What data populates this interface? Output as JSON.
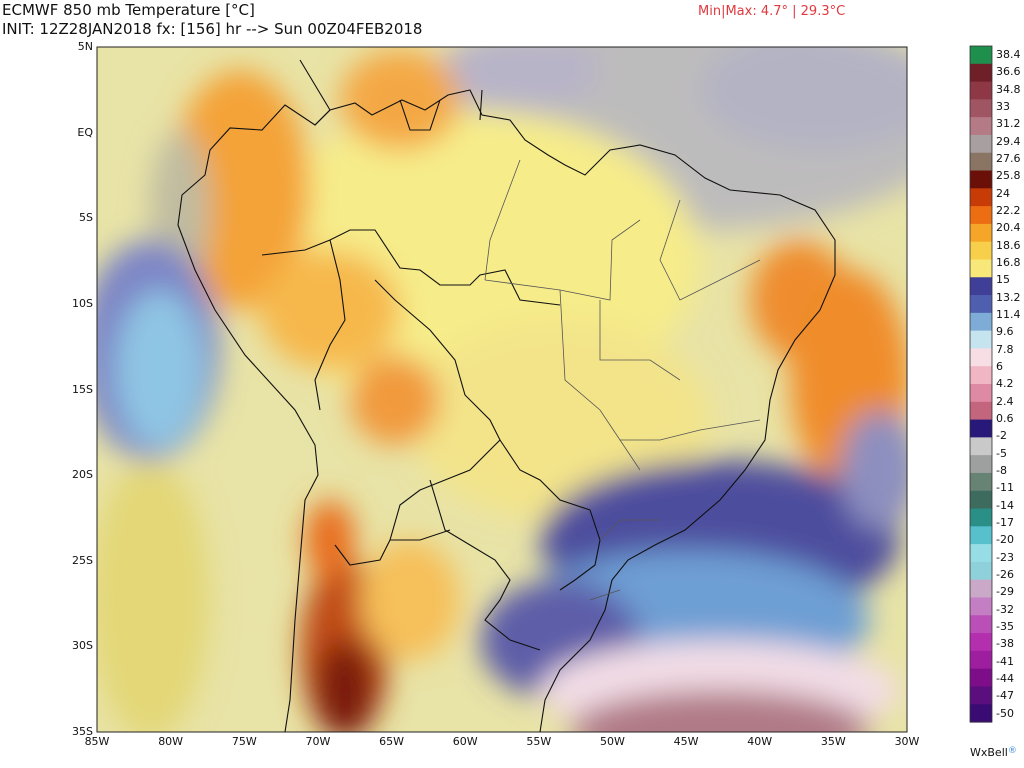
{
  "header": {
    "title_line1": "ECMWF 850 mb Temperature [°C]",
    "title_line2": "INIT: 12Z28JAN2018 fx: [156] hr --> Sun 00Z04FEB2018",
    "minmax": "Min|Max: 4.7° | 29.3°C"
  },
  "map": {
    "region": "South America / Brazil",
    "lat_labels": [
      "5N",
      "EQ",
      "5S",
      "10S",
      "15S",
      "20S",
      "25S",
      "30S",
      "35S"
    ],
    "lon_labels": [
      "85W",
      "80W",
      "75W",
      "70W",
      "65W",
      "60W",
      "55W",
      "50W",
      "45W",
      "40W",
      "35W",
      "30W"
    ],
    "lat_range": [
      -35,
      5
    ],
    "lon_range": [
      -85,
      -30
    ]
  },
  "colorbar": {
    "labels": [
      "38.4",
      "36.6",
      "34.8",
      "33",
      "31.2",
      "29.4",
      "27.6",
      "25.8",
      "24",
      "22.2",
      "20.4",
      "18.6",
      "16.8",
      "15",
      "13.2",
      "11.4",
      "9.6",
      "7.8",
      "6",
      "4.2",
      "2.4",
      "0.6",
      "-2",
      "-5",
      "-8",
      "-11",
      "-14",
      "-17",
      "-20",
      "-23",
      "-26",
      "-29",
      "-32",
      "-35",
      "-38",
      "-41",
      "-44",
      "-47",
      "-50"
    ],
    "colors": [
      "#1f8f4e",
      "#6e1f28",
      "#8d3844",
      "#a05563",
      "#b47a86",
      "#a8a0a0",
      "#8a7565",
      "#6a1008",
      "#c73b06",
      "#ec6d12",
      "#f5a628",
      "#f8cf4a",
      "#f8e779",
      "#3f3f98",
      "#4f5fb0",
      "#7facd6",
      "#c5e4f0",
      "#f7dde4",
      "#f0b6c4",
      "#df8aa5",
      "#c4657e",
      "#27187a",
      "#c9c9c9",
      "#9da09e",
      "#668373",
      "#3d6c5e",
      "#2a8f86",
      "#56c0cc",
      "#97dde6",
      "#8fd1da",
      "#c9a8c8",
      "#c47ec3",
      "#ba4fb7",
      "#b42fae",
      "#9d1fa0",
      "#7e0d8a",
      "#5b0e7e",
      "#3b0b74"
    ]
  },
  "brand": {
    "name": "WxBell",
    "mark": "®"
  }
}
